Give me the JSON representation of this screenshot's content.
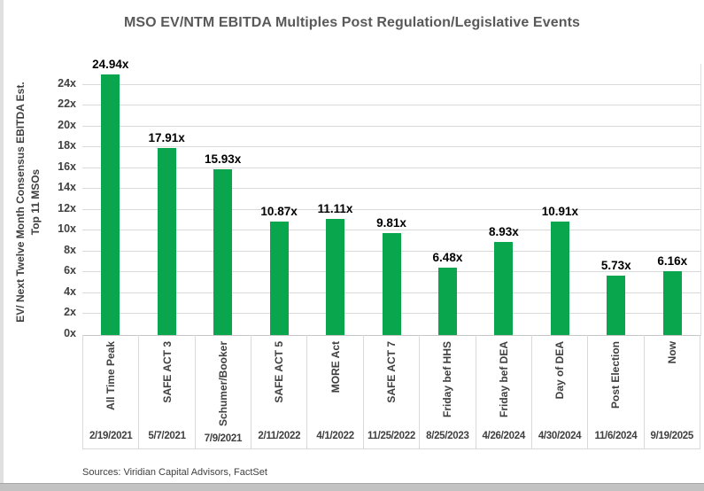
{
  "sources": "Sources: Viridian Capital Advisors, FactSet",
  "chart_data": {
    "type": "bar",
    "title": "MSO EV/NTM EBITDA Multiples Post Regulation/Legislative Events",
    "ylabel_line1": "EV/ Next Twelve Month Consensus EBITDA Est.",
    "ylabel_line2": "Top 11 MSOs",
    "categories": [
      "All Time Peak",
      "SAFE ACT 3",
      "Schumer/Booker",
      "SAFE ACT 5",
      "MORE Act",
      "SAFE ACT 7",
      "Friday bef HHS",
      "Friday bef DEA",
      "Day of DEA",
      "Post Election",
      "Now"
    ],
    "dates": [
      "2/19/2021",
      "5/7/2021",
      "7/9/2021",
      "2/11/2022",
      "4/1/2022",
      "11/25/2022",
      "8/25/2023",
      "4/26/2024",
      "4/30/2024",
      "11/6/2024",
      "9/19/2025"
    ],
    "values": [
      24.94,
      17.91,
      15.93,
      10.87,
      11.11,
      9.81,
      6.48,
      8.93,
      10.91,
      5.73,
      6.16
    ],
    "value_labels": [
      "24.94x",
      "17.91x",
      "15.93x",
      "10.87x",
      "11.11x",
      "9.81x",
      "6.48x",
      "8.93x",
      "10.91x",
      "5.73x",
      "6.16x"
    ],
    "ylim": [
      0,
      26
    ],
    "ytick_step": 2,
    "ytick_max": 24,
    "ytick_suffix": "x",
    "bar_color": "#0aa64e",
    "grid": true,
    "legend": "none"
  }
}
